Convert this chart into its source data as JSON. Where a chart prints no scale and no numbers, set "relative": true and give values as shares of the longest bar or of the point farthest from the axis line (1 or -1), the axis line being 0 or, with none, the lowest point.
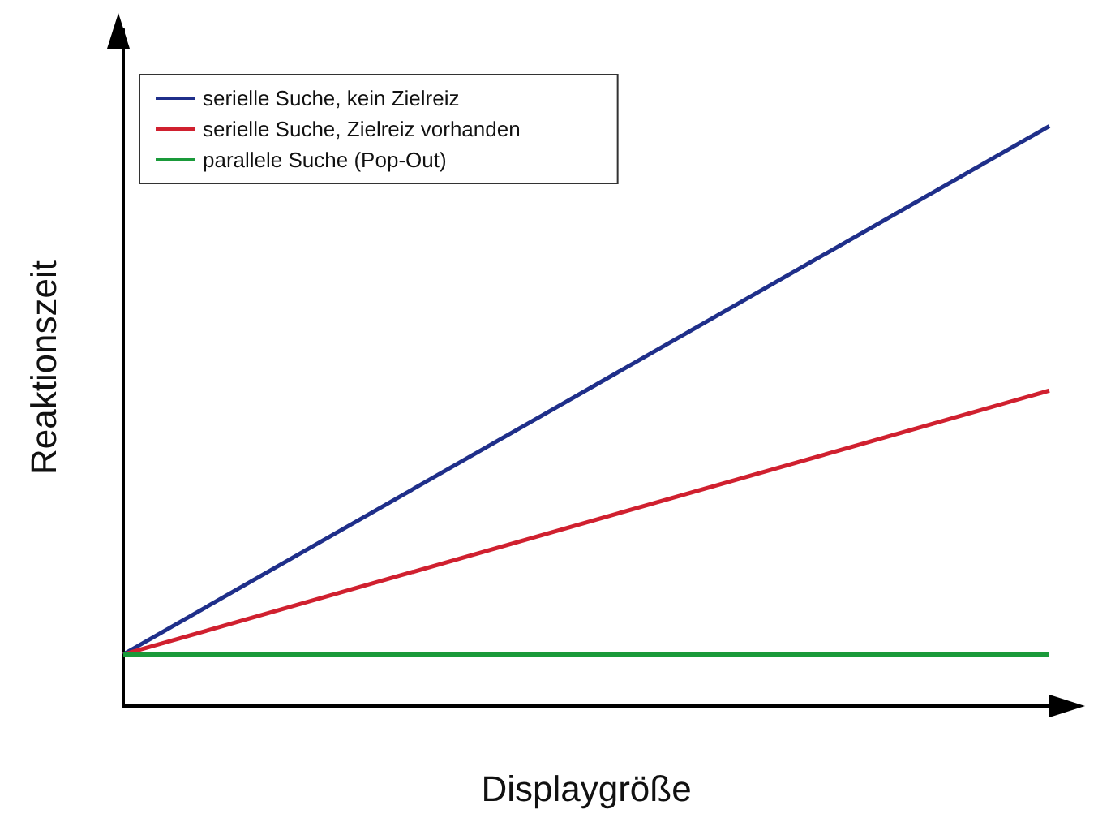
{
  "chart_data": {
    "type": "line",
    "xlabel": "Displaygröße",
    "ylabel": "Reaktionszeit",
    "categories": [
      null,
      null
    ],
    "relative": true,
    "legend": "top left",
    "marker": "none",
    "grid": false,
    "series": [
      {
        "name": "serielle Suche, kein Zielreiz",
        "color": "#1f2f8a",
        "values": [
          0.089,
          1
        ]
      },
      {
        "name": "serielle Suche, Zielreiz vorhanden",
        "color": "#d0202f",
        "values": [
          0.089,
          0.544
        ]
      },
      {
        "name": "parallele Suche (Pop-Out)",
        "color": "#1a9a3a",
        "values": [
          0.089,
          0.089
        ]
      }
    ]
  }
}
